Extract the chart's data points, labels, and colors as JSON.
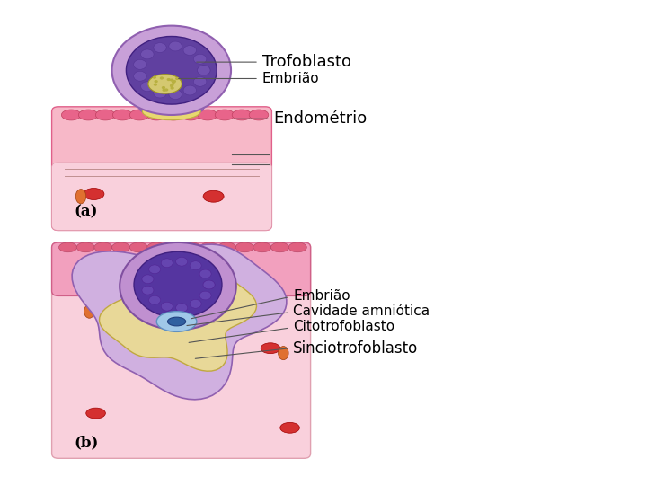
{
  "background_color": "#ffffff",
  "panel_a_label": "(a)",
  "panel_b_label": "(b)",
  "annotations_a": [
    {
      "text": "Trofoblasto",
      "fontsize": 13
    },
    {
      "text": "Embrião",
      "fontsize": 11
    },
    {
      "text": "Endométrio",
      "fontsize": 13
    }
  ],
  "annotations_b": [
    {
      "text": "Embrião",
      "fontsize": 11
    },
    {
      "text": "Cavidade amniótica",
      "fontsize": 11
    },
    {
      "text": "Citotrofoblasto",
      "fontsize": 11
    },
    {
      "text": "Sinciotrofoblasto",
      "fontsize": 12
    }
  ],
  "line_color": "#555555"
}
